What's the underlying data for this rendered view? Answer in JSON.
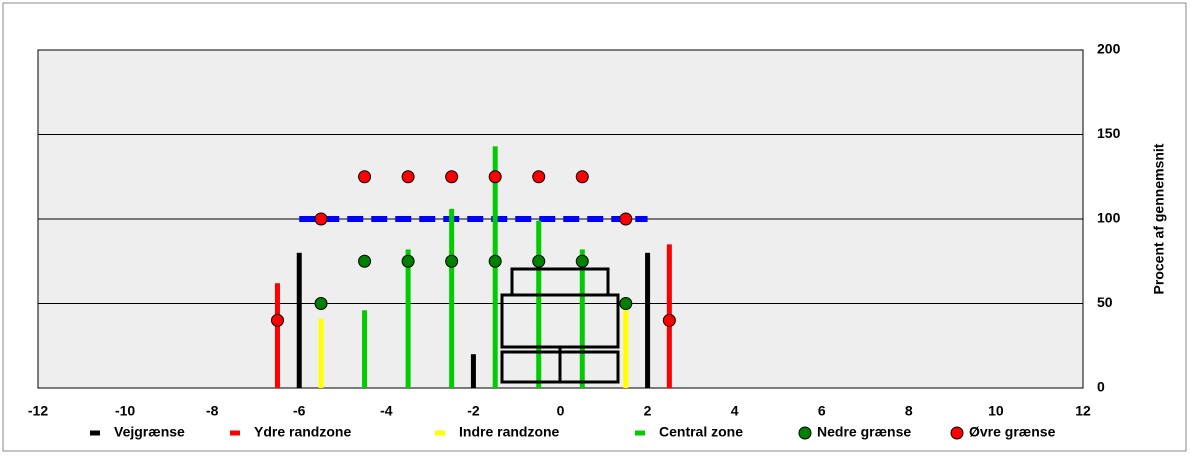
{
  "chart_data": {
    "type": "bar",
    "y_label": "Procent af gennemsnit",
    "xlim": [
      -12,
      12
    ],
    "xticks": [
      -12,
      -10,
      -8,
      -6,
      -4,
      -2,
      0,
      2,
      4,
      6,
      8,
      10,
      12
    ],
    "ylim": [
      0,
      200
    ],
    "yticks": [
      0,
      50,
      100,
      150,
      200
    ],
    "grid": true,
    "series": [
      {
        "name": "Vejgrænse",
        "kind": "bar",
        "color": "#000000",
        "x": [
          -6,
          -2,
          2
        ],
        "values": [
          80,
          20,
          80
        ]
      },
      {
        "name": "Ydre randzone",
        "kind": "bar",
        "color": "#ff0000",
        "x": [
          -6.5,
          2.5
        ],
        "values": [
          62,
          85
        ]
      },
      {
        "name": "Indre randzone",
        "kind": "bar",
        "color": "#ffff00",
        "x": [
          -5.5,
          1.5
        ],
        "values": [
          41,
          49
        ]
      },
      {
        "name": "Central zone",
        "kind": "bar",
        "color": "#00cc00",
        "x": [
          -4.5,
          -3.5,
          -2.5,
          -1.5,
          -0.5,
          0.5
        ],
        "values": [
          46,
          82,
          106,
          143,
          99,
          82
        ]
      },
      {
        "name": "Nedre grænse",
        "kind": "scatter",
        "color": "#008000",
        "x": [
          -5.5,
          -4.5,
          -3.5,
          -2.5,
          -1.5,
          -0.5,
          0.5,
          1.5
        ],
        "values": [
          50,
          75,
          75,
          75,
          75,
          75,
          75,
          50
        ]
      },
      {
        "name": "Øvre grænse",
        "kind": "scatter",
        "color": "#ff0000",
        "x": [
          -6.5,
          -5.5,
          -4.5,
          -3.5,
          -2.5,
          -1.5,
          -0.5,
          0.5,
          1.5,
          2.5
        ],
        "values": [
          40,
          100,
          125,
          125,
          125,
          125,
          125,
          125,
          100,
          40
        ]
      }
    ],
    "reference_line": {
      "color": "#0000ff",
      "x": [
        -6,
        2
      ],
      "values": [
        100,
        100
      ]
    }
  }
}
